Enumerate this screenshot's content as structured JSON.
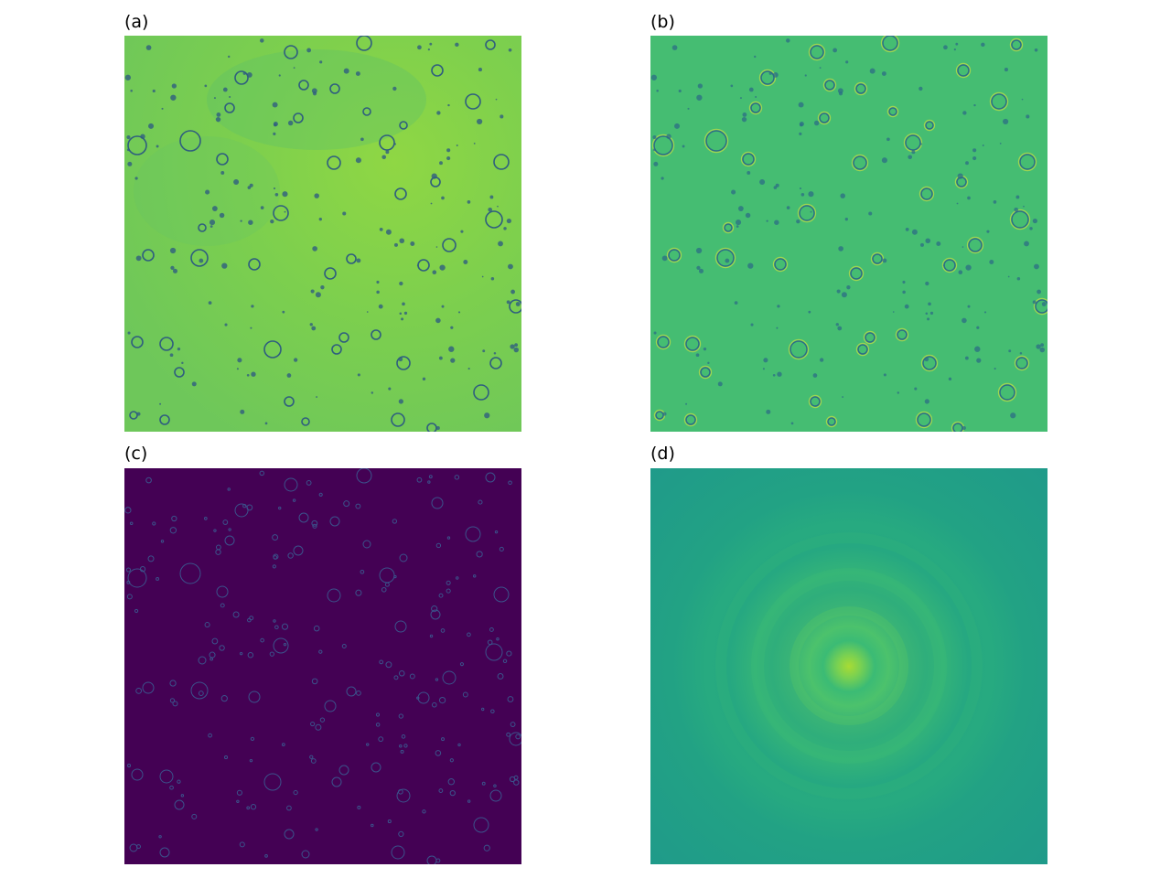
{
  "panels": [
    {
      "id": "a",
      "label": "(a)"
    },
    {
      "id": "b",
      "label": "(b)"
    },
    {
      "id": "c",
      "label": "(c)"
    },
    {
      "id": "d",
      "label": "(d)"
    }
  ],
  "colors": {
    "a_background": "#7ccf4e",
    "a_bubble_edge": "#2f5e7f",
    "b_background": "#45bd72",
    "b_bubble_edge": "#2c6e86",
    "b_halo": "#b4dc48",
    "c_background": "#440154",
    "c_edge": "#3b528b",
    "d_outer": "#1f9a8a",
    "d_center": "#a8db34"
  }
}
